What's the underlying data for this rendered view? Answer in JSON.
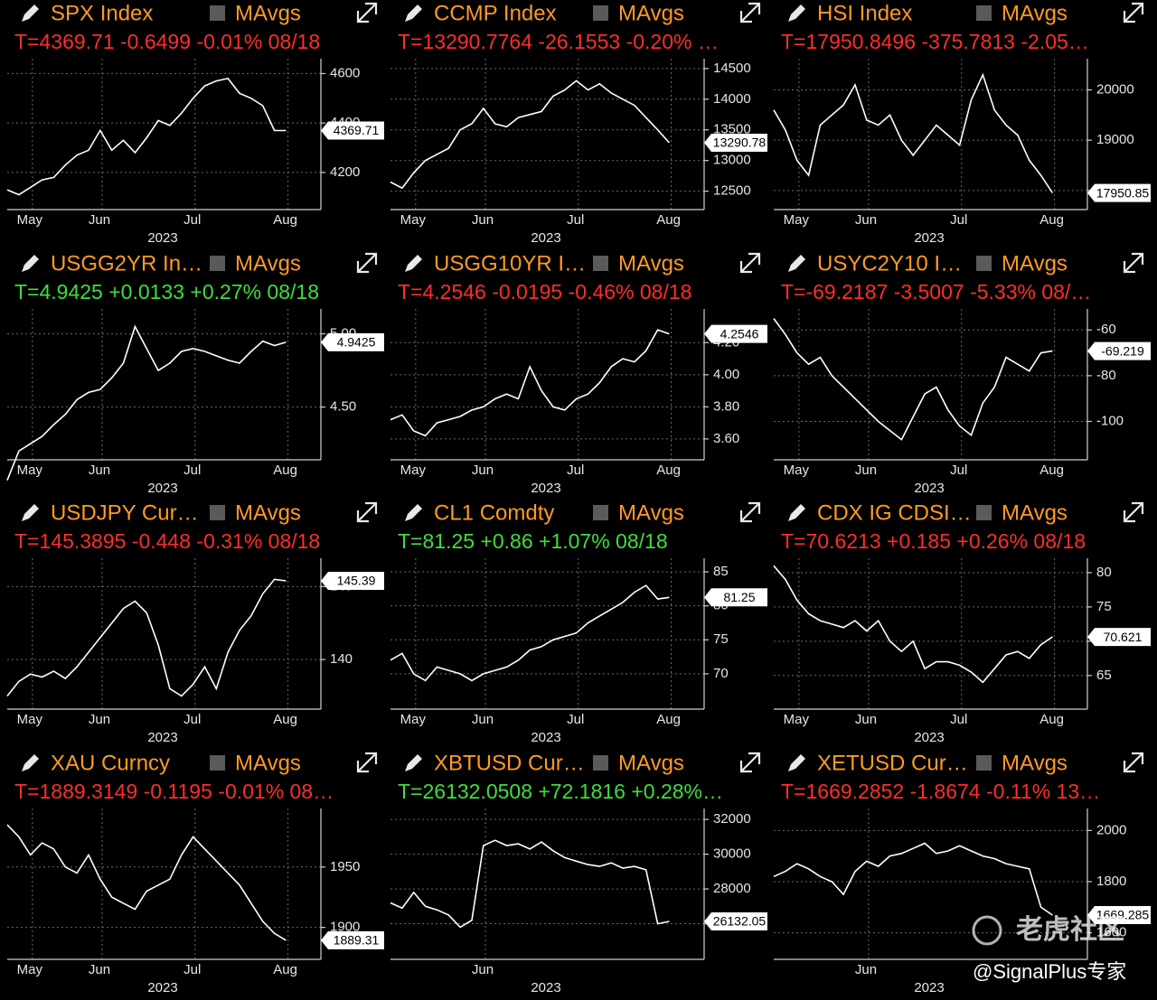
{
  "chart_data": [
    {
      "type": "line",
      "title": "SPX Index",
      "indicator": "MAvgs",
      "quote": "T=4369.71 -0.6499 -0.01% 08/18",
      "quote_color": "#ff2d2d",
      "color": "#ffffff",
      "values": [
        4130,
        4110,
        4140,
        4170,
        4180,
        4230,
        4270,
        4290,
        4370,
        4290,
        4330,
        4280,
        4340,
        4410,
        4390,
        4440,
        4500,
        4550,
        4570,
        4580,
        4520,
        4500,
        4470,
        4370,
        4369.71
      ],
      "xlim": [
        0,
        27
      ],
      "xticks": [
        {
          "value": 1,
          "label": "May"
        },
        {
          "value": 7,
          "label": "Jun"
        },
        {
          "value": 15,
          "label": "Jul"
        },
        {
          "value": 23,
          "label": "Aug"
        }
      ],
      "xlabel": "2023",
      "ylim": [
        4050,
        4660
      ],
      "yticks": [
        4200,
        4400,
        4600
      ],
      "grid": true
    },
    {
      "type": "line",
      "title": "CCMP Index",
      "indicator": "MAvgs",
      "quote": "T=13290.7764 -26.1553 -0.20% …",
      "quote_color": "#ff2d2d",
      "color": "#ffffff",
      "values": [
        12650,
        12550,
        12800,
        13000,
        13100,
        13200,
        13500,
        13600,
        13850,
        13600,
        13550,
        13700,
        13750,
        13800,
        14050,
        14150,
        14300,
        14150,
        14250,
        14100,
        14000,
        13900,
        13700,
        13500,
        13290.78
      ],
      "xlim": [
        0,
        27
      ],
      "xticks": [
        {
          "value": 1,
          "label": "May"
        },
        {
          "value": 7,
          "label": "Jun"
        },
        {
          "value": 15,
          "label": "Jul"
        },
        {
          "value": 23,
          "label": "Aug"
        }
      ],
      "xlabel": "2023",
      "ylim": [
        12200,
        14660
      ],
      "yticks": [
        12500,
        13000,
        13500,
        14000,
        14500
      ],
      "grid": true
    },
    {
      "type": "line",
      "title": "HSI Index",
      "indicator": "MAvgs",
      "quote": "T=17950.8496 -375.7813 -2.05…",
      "quote_color": "#ff2d2d",
      "color": "#ffffff",
      "values": [
        19600,
        19200,
        18600,
        18300,
        19300,
        19500,
        19700,
        20100,
        19400,
        19300,
        19500,
        19000,
        18700,
        19000,
        19300,
        19100,
        18900,
        19800,
        20300,
        19600,
        19300,
        19100,
        18600,
        18300,
        17950.85
      ],
      "xlim": [
        0,
        27
      ],
      "xticks": [
        {
          "value": 1,
          "label": "May"
        },
        {
          "value": 7,
          "label": "Jun"
        },
        {
          "value": 15,
          "label": "Jul"
        },
        {
          "value": 23,
          "label": "Aug"
        }
      ],
      "xlabel": "2023",
      "ylim": [
        17620,
        20620
      ],
      "yticks": [
        18000,
        19000,
        20000
      ],
      "grid": true
    },
    {
      "type": "line",
      "title": "USGG2YR In…",
      "indicator": "MAvgs",
      "quote": "T=4.9425 +0.0133 +0.27% 08/18",
      "quote_color": "#3ede3e",
      "color": "#ffffff",
      "values": [
        4.0,
        4.2,
        4.25,
        4.3,
        4.38,
        4.45,
        4.55,
        4.6,
        4.62,
        4.7,
        4.8,
        5.05,
        4.9,
        4.75,
        4.8,
        4.88,
        4.9,
        4.88,
        4.85,
        4.82,
        4.8,
        4.88,
        4.95,
        4.92,
        4.9425
      ],
      "xlim": [
        0,
        27
      ],
      "xticks": [
        {
          "value": 1,
          "label": "May"
        },
        {
          "value": 7,
          "label": "Jun"
        },
        {
          "value": 15,
          "label": "Jul"
        },
        {
          "value": 23,
          "label": "Aug"
        }
      ],
      "xlabel": "2023",
      "ylim": [
        4.14,
        5.17
      ],
      "yticks": [
        {
          "value": 4.5,
          "label": "4.50"
        },
        {
          "value": 5,
          "label": "5.00"
        }
      ],
      "grid": true
    },
    {
      "type": "line",
      "title": "USGG10YR I…",
      "indicator": "MAvgs",
      "quote": "T=4.2546 -0.0195 -0.46% 08/18",
      "quote_color": "#ff2d2d",
      "color": "#ffffff",
      "values": [
        3.72,
        3.75,
        3.65,
        3.62,
        3.7,
        3.72,
        3.74,
        3.78,
        3.8,
        3.85,
        3.88,
        3.85,
        4.05,
        3.9,
        3.8,
        3.78,
        3.85,
        3.88,
        3.95,
        4.05,
        4.1,
        4.08,
        4.15,
        4.28,
        4.2546
      ],
      "xlim": [
        0,
        27
      ],
      "xticks": [
        {
          "value": 1,
          "label": "May"
        },
        {
          "value": 7,
          "label": "Jun"
        },
        {
          "value": 15,
          "label": "Jul"
        },
        {
          "value": 23,
          "label": "Aug"
        }
      ],
      "xlabel": "2023",
      "ylim": [
        3.47,
        4.41
      ],
      "yticks": [
        {
          "value": 3.6,
          "label": "3.60"
        },
        {
          "value": 3.8,
          "label": "3.80"
        },
        {
          "value": 4,
          "label": "4.00"
        },
        {
          "value": 4.2,
          "label": "4.20"
        }
      ],
      "grid": true
    },
    {
      "type": "line",
      "title": "USYC2Y10 I…",
      "indicator": "MAvgs",
      "quote": "T=-69.2187 -3.5007 -5.33% 08/…",
      "quote_color": "#ff2d2d",
      "color": "#ffffff",
      "values": [
        -55,
        -62,
        -70,
        -75,
        -72,
        -80,
        -85,
        -90,
        -95,
        -100,
        -104,
        -108,
        -98,
        -88,
        -85,
        -95,
        -102,
        -106,
        -92,
        -85,
        -72,
        -75,
        -78,
        -70,
        -69.219
      ],
      "xlim": [
        0,
        27
      ],
      "xticks": [
        {
          "value": 1,
          "label": "May"
        },
        {
          "value": 7,
          "label": "Jun"
        },
        {
          "value": 15,
          "label": "Jul"
        },
        {
          "value": 23,
          "label": "Aug"
        }
      ],
      "xlabel": "2023",
      "ylim": [
        -116.8,
        -50.8
      ],
      "yticks": [
        -100,
        -80,
        -60
      ],
      "grid": true
    },
    {
      "type": "line",
      "title": "USDJPY Cur…",
      "indicator": "MAvgs",
      "quote": "T=145.3895 -0.448 -0.31% 08/18",
      "quote_color": "#ff2d2d",
      "color": "#ffffff",
      "values": [
        137.5,
        138.5,
        139,
        138.8,
        139.2,
        138.7,
        139.5,
        140.5,
        141.5,
        142.5,
        143.5,
        144,
        143.2,
        141,
        138,
        137.5,
        138.3,
        139.5,
        138,
        140.5,
        142,
        143,
        144.5,
        145.5,
        145.39
      ],
      "xlim": [
        0,
        27
      ],
      "xticks": [
        {
          "value": 1,
          "label": "May"
        },
        {
          "value": 7,
          "label": "Jun"
        },
        {
          "value": 15,
          "label": "Jul"
        },
        {
          "value": 23,
          "label": "Aug"
        }
      ],
      "xlabel": "2023",
      "ylim": [
        136.6,
        146.94
      ],
      "yticks": [
        140,
        145
      ],
      "grid": true
    },
    {
      "type": "line",
      "title": "CL1 Comdty",
      "indicator": "MAvgs",
      "quote": "T=81.25 +0.86 +1.07% 08/18",
      "quote_color": "#3ede3e",
      "color": "#ffffff",
      "values": [
        72,
        73,
        70,
        69,
        71,
        70.5,
        70,
        69,
        70,
        70.5,
        71,
        72,
        73.5,
        74,
        75,
        75.5,
        76,
        77.5,
        78.5,
        79.5,
        80.5,
        82,
        83,
        81,
        81.25
      ],
      "xlim": [
        0,
        27
      ],
      "xticks": [
        {
          "value": 1,
          "label": "May"
        },
        {
          "value": 7,
          "label": "Jun"
        },
        {
          "value": 15,
          "label": "Jul"
        },
        {
          "value": 23,
          "label": "Aug"
        }
      ],
      "xlabel": "2023",
      "ylim": [
        64.8,
        87
      ],
      "yticks": [
        70,
        75,
        80,
        85
      ],
      "grid": true
    },
    {
      "type": "line",
      "title": "CDX IG CDSI…",
      "indicator": "MAvgs",
      "quote": "T=70.6213 +0.185 +0.26% 08/18",
      "quote_color": "#ff2d2d",
      "color": "#ffffff",
      "values": [
        81,
        79,
        76,
        74,
        73,
        72.5,
        72,
        73,
        71.5,
        73,
        70,
        68.5,
        70,
        66,
        67,
        67,
        66.5,
        65.5,
        64,
        66,
        68,
        68.5,
        67.5,
        69.5,
        70.621
      ],
      "xlim": [
        0,
        27
      ],
      "xticks": [
        {
          "value": 1,
          "label": "May"
        },
        {
          "value": 7,
          "label": "Jun"
        },
        {
          "value": 15,
          "label": "Jul"
        },
        {
          "value": 23,
          "label": "Aug"
        }
      ],
      "xlabel": "2023",
      "ylim": [
        60.1,
        82.1
      ],
      "yticks": [
        65,
        70,
        75,
        80
      ],
      "grid": true
    },
    {
      "type": "line",
      "title": "XAU Curncy",
      "indicator": "MAvgs",
      "quote": "T=1889.3149 -0.1195 -0.01% 08…",
      "quote_color": "#ff2d2d",
      "color": "#ffffff",
      "values": [
        1985,
        1975,
        1960,
        1970,
        1965,
        1950,
        1945,
        1960,
        1940,
        1925,
        1920,
        1915,
        1930,
        1935,
        1940,
        1960,
        1975,
        1965,
        1955,
        1945,
        1935,
        1920,
        1905,
        1895,
        1889.31
      ],
      "xlim": [
        0,
        27
      ],
      "xticks": [
        {
          "value": 1,
          "label": "May"
        },
        {
          "value": 7,
          "label": "Jun"
        },
        {
          "value": 15,
          "label": "Jul"
        },
        {
          "value": 23,
          "label": "Aug"
        }
      ],
      "xlabel": "2023",
      "ylim": [
        1873.5,
        1998.5
      ],
      "yticks": [
        1900,
        1950
      ],
      "grid": true
    },
    {
      "type": "line",
      "title": "XBTUSD Cur…",
      "indicator": "MAvgs",
      "quote": "T=26132.0508 +72.1816 +0.28%…",
      "quote_color": "#3ede3e",
      "color": "#ffffff",
      "values": [
        27200,
        26900,
        27800,
        27000,
        26800,
        26500,
        25800,
        26200,
        30500,
        30800,
        30500,
        30600,
        30300,
        30700,
        30200,
        29800,
        29600,
        29400,
        29300,
        29500,
        29200,
        29300,
        29100,
        26000,
        26132.05
      ],
      "xlim": [
        0,
        27
      ],
      "xticks": [
        {
          "value": 7,
          "label": "Jun"
        }
      ],
      "xlabel": "2023",
      "ylim": [
        23950,
        32630
      ],
      "yticks": [
        26000,
        28000,
        30000,
        32000
      ],
      "grid": true
    },
    {
      "type": "line",
      "title": "XETUSD Cur…",
      "indicator": "MAvgs",
      "quote": "T=1669.2852 -1.8674 -0.11% 13…",
      "quote_color": "#ff2d2d",
      "color": "#ffffff",
      "values": [
        1820,
        1840,
        1870,
        1850,
        1820,
        1800,
        1750,
        1840,
        1880,
        1860,
        1900,
        1910,
        1930,
        1950,
        1910,
        1920,
        1940,
        1920,
        1900,
        1890,
        1870,
        1860,
        1850,
        1700,
        1669.285
      ],
      "xlim": [
        0,
        27
      ],
      "xticks": [
        {
          "value": 7,
          "label": "Jun"
        }
      ],
      "xlabel": "2023",
      "ylim": [
        1496,
        2086
      ],
      "yticks": [
        1600,
        1800,
        2000
      ],
      "grid": true
    }
  ],
  "watermark": {
    "logo": "老虎社区",
    "credit": "@SignalPlus专家"
  }
}
